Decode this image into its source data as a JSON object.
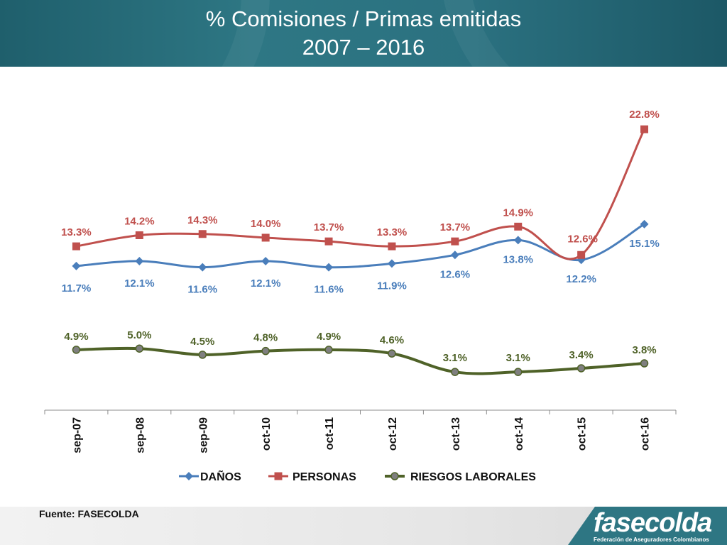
{
  "header": {
    "title_line1": "% Comisiones / Primas emitidas",
    "title_line2": "2007 – 2016"
  },
  "chart_data": {
    "type": "line",
    "categories": [
      "sep-07",
      "sep-08",
      "sep-09",
      "oct-10",
      "oct-11",
      "oct-12",
      "oct-13",
      "oct-14",
      "oct-15",
      "oct-16"
    ],
    "ylim": [
      0,
      25
    ],
    "grid": false,
    "legend_position": "bottom",
    "series": [
      {
        "name": "DAÑOS",
        "color": "#4a7ebb",
        "marker": "diamond",
        "values": [
          11.7,
          12.1,
          11.6,
          12.1,
          11.6,
          11.9,
          12.6,
          13.8,
          12.2,
          15.1
        ],
        "labels": [
          "11.7%",
          "12.1%",
          "11.6%",
          "12.1%",
          "11.6%",
          "11.9%",
          "12.6%",
          "13.8%",
          "12.2%",
          "15.1%"
        ]
      },
      {
        "name": "PERSONAS",
        "color": "#c0504d",
        "marker": "square",
        "values": [
          13.3,
          14.2,
          14.3,
          14.0,
          13.7,
          13.3,
          13.7,
          14.9,
          12.6,
          22.8
        ],
        "labels": [
          "13.3%",
          "14.2%",
          "14.3%",
          "14.0%",
          "13.7%",
          "13.3%",
          "13.7%",
          "14.9%",
          "12.6%",
          "22.8%"
        ]
      },
      {
        "name": "RIESGOS LABORALES",
        "color": "#4f6228",
        "marker": "circle",
        "values": [
          4.9,
          5.0,
          4.5,
          4.8,
          4.9,
          4.6,
          3.1,
          3.1,
          3.4,
          3.8
        ],
        "labels": [
          "4.9%",
          "5.0%",
          "4.5%",
          "4.8%",
          "4.9%",
          "4.6%",
          "3.1%",
          "3.1%",
          "3.4%",
          "3.8%"
        ]
      }
    ]
  },
  "footer": {
    "source": "Fuente: FASECOLDA",
    "logo_word": "fasecolda",
    "logo_sub": "Federación de Aseguradores Colombianos"
  }
}
